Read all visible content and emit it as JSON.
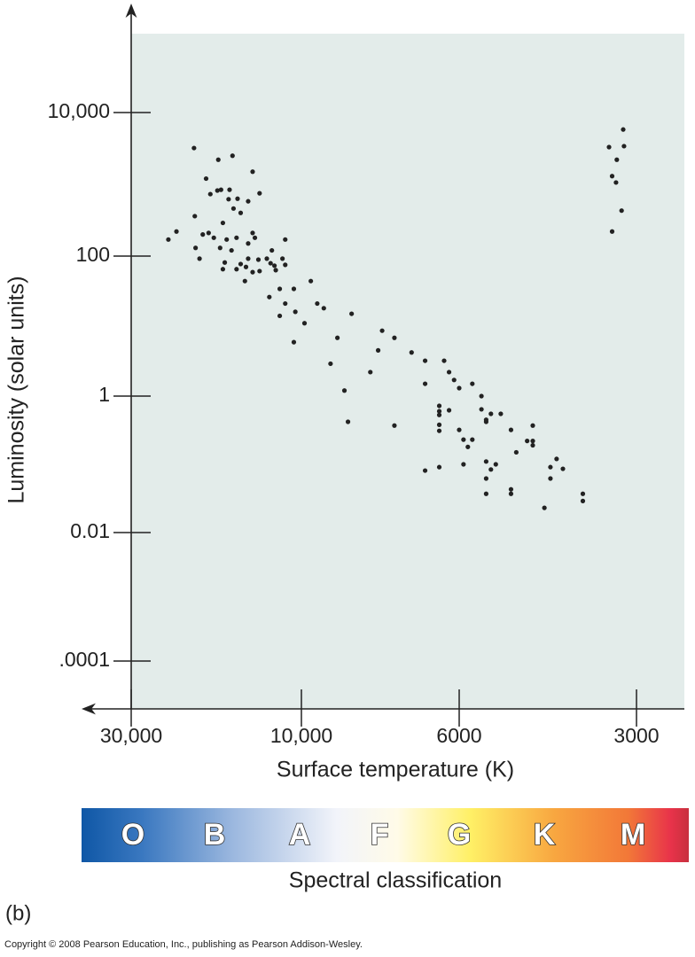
{
  "chart_data": {
    "type": "scatter",
    "xlabel": "Surface temperature (K)",
    "ylabel": "Luminosity (solar units)",
    "xlog": true,
    "ylog": true,
    "xreversed": true,
    "xlim": [
      30000,
      2500
    ],
    "xticks": [
      {
        "value": 30000,
        "label": "30,000"
      },
      {
        "value": 10000,
        "label": "10,000"
      },
      6000,
      3000
    ],
    "ylim": [
      1.8e-05,
      126000
    ],
    "yticks": [
      {
        "value": 0.0001,
        "label": ".0001"
      },
      0.01,
      1,
      100,
      {
        "value": 10000,
        "label": "10,000"
      }
    ],
    "color": "#222222",
    "background": "#e3ecea",
    "x": [
      20000,
      15600,
      17100,
      13700,
      18500,
      16800,
      17200,
      15900,
      18000,
      13100,
      15100,
      16000,
      14100,
      15500,
      14800,
      19900,
      16600,
      22400,
      18900,
      18200,
      13700,
      23600,
      17600,
      13500,
      16200,
      15200,
      11100,
      14100,
      19800,
      16900,
      15700,
      12100,
      19300,
      16400,
      14100,
      12500,
      13200,
      12200,
      11300,
      14800,
      14300,
      11900,
      11100,
      16600,
      15200,
      13700,
      11800,
      13100,
      14400,
      9700,
      11500,
      10500,
      12300,
      11100,
      9500,
      9300,
      10400,
      11500,
      8500,
      9900,
      7700,
      8900,
      7400,
      10500,
      7800,
      7000,
      6700,
      6300,
      9100,
      8000,
      6200,
      6100,
      6000,
      5700,
      6700,
      8700,
      5500,
      6400,
      6400,
      6200,
      5500,
      5300,
      5100,
      5400,
      6400,
      8600,
      7400,
      6400,
      4500,
      6400,
      6000,
      5400,
      4900,
      5900,
      5700,
      5800,
      4500,
      4600,
      4500,
      4800,
      5400,
      4100,
      5200,
      5900,
      5300,
      4200,
      4000,
      6400,
      6700,
      5400,
      4900,
      4900,
      5400,
      3700,
      3700,
      4300,
      4200,
      3160,
      3340,
      3150,
      3240,
      3300,
      3250,
      3180,
      3300
    ],
    "values": [
      3200,
      2500,
      2200,
      1500,
      1200,
      840,
      820,
      840,
      730,
      750,
      630,
      620,
      580,
      460,
      400,
      360,
      290,
      220,
      200,
      210,
      210,
      170,
      180,
      180,
      170,
      180,
      170,
      150,
      130,
      130,
      120,
      120,
      92,
      81,
      92,
      92,
      89,
      79,
      92,
      77,
      70,
      73,
      75,
      65,
      65,
      59,
      63,
      61,
      44,
      44,
      34,
      34,
      26,
      21,
      21,
      18,
      16,
      14,
      15,
      11,
      8.6,
      6.8,
      6.8,
      5.9,
      4.5,
      4.2,
      3.2,
      3.2,
      2.9,
      2.2,
      2.2,
      1.7,
      1.3,
      1.5,
      1.5,
      1.2,
      1,
      0.72,
      0.6,
      0.62,
      0.64,
      0.55,
      0.55,
      0.45,
      0.53,
      0.42,
      0.37,
      0.38,
      0.37,
      0.31,
      0.32,
      0.42,
      0.32,
      0.23,
      0.23,
      0.18,
      0.22,
      0.22,
      0.19,
      0.15,
      0.11,
      0.12,
      0.1,
      0.1,
      0.084,
      0.091,
      0.086,
      0.091,
      0.081,
      0.062,
      0.043,
      0.037,
      0.037,
      0.037,
      0.029,
      0.023,
      0.062,
      5800,
      3300,
      3400,
      2200,
      1300,
      1060,
      430,
      220
    ],
    "spectral_classes": [
      "O",
      "B",
      "A",
      "F",
      "G",
      "K",
      "M"
    ],
    "spectral_label": "Spectral classification"
  },
  "panel_label": "(b)",
  "copyright": "Copyright © 2008 Pearson Education, Inc., publishing as Pearson Addison-Wesley."
}
